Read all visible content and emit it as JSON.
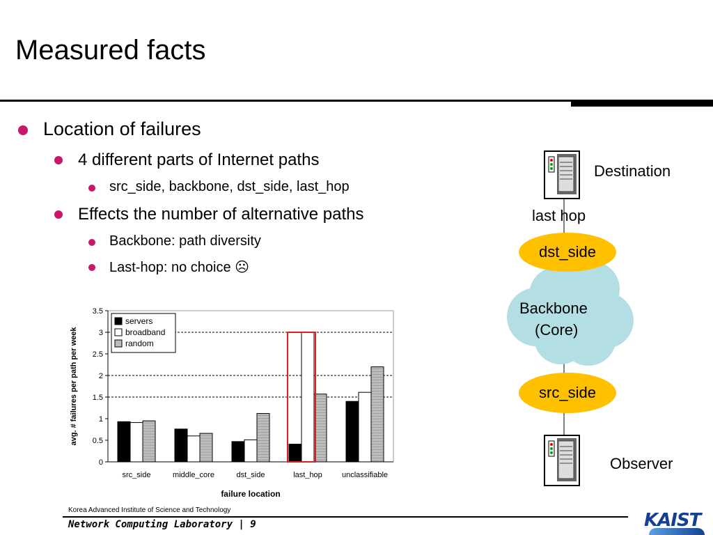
{
  "slide": {
    "title": "Measured facts",
    "bullets": {
      "b1": "Location of failures",
      "b1_1": "4 different parts of Internet paths",
      "b1_1_1": "src_side, backbone, dst_side, last_hop",
      "b1_2": "Effects the number of alternative paths",
      "b1_2_1": "Backbone: path diversity",
      "b1_2_2": "Last-hop: no choice ☹"
    }
  },
  "diagram": {
    "destination": "Destination",
    "last_hop": "last hop",
    "dst_side": "dst_side",
    "backbone_line1": "Backbone",
    "backbone_line2": "(Core)",
    "src_side": "src_side",
    "observer": "Observer"
  },
  "chart_data": {
    "type": "bar",
    "categories": [
      "src_side",
      "middle_core",
      "dst_side",
      "last_hop",
      "unclassifiable"
    ],
    "series": [
      {
        "name": "servers",
        "values": [
          0.93,
          0.76,
          0.47,
          0.41,
          1.4
        ]
      },
      {
        "name": "broadband",
        "values": [
          0.91,
          0.6,
          0.51,
          3.0,
          1.61
        ]
      },
      {
        "name": "random",
        "values": [
          0.95,
          0.66,
          1.12,
          1.57,
          2.2
        ]
      }
    ],
    "xlabel": "failure location",
    "ylabel": "avg. # failures per path per week",
    "ylim": [
      0,
      3.5
    ],
    "yticks": [
      "0",
      "0.5",
      "1",
      "1.5",
      "2",
      "2.5",
      "3",
      "3.5"
    ],
    "grid": "dashed major lines at 1.5, 2 and 3",
    "legend_position": "top-left",
    "highlight_category": "last_hop",
    "highlight_color": "#e02020",
    "series_colors": [
      "#000000",
      "#ffffff",
      "#bdbdbd"
    ]
  },
  "footer": {
    "institute": "Korea Advanced Institute of Science and Technology",
    "lab": "Network Computing Laboratory | 9",
    "logo": "KAIST"
  },
  "colors": {
    "bullet": "#c8186a",
    "oval": "#ffc000",
    "cloud": "#b3dfe4",
    "logo": "#14418f"
  }
}
